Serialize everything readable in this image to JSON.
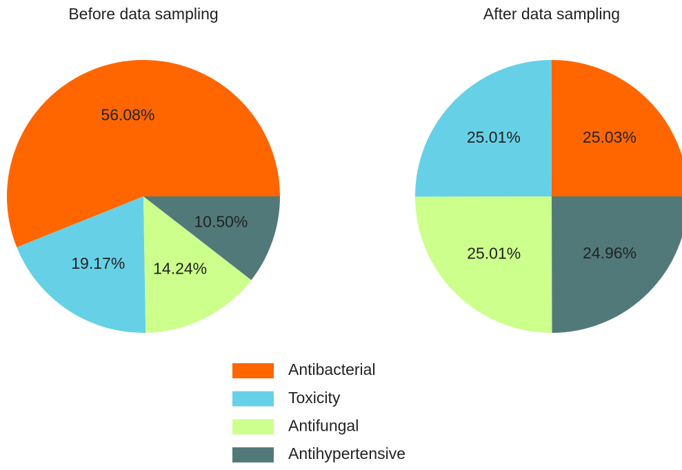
{
  "chart_data": [
    {
      "type": "pie",
      "title": "Before data sampling",
      "categories": [
        "Antibacterial",
        "Toxicity",
        "Antifungal",
        "Antihypertensive"
      ],
      "values": [
        56.08,
        19.17,
        14.24,
        10.5
      ],
      "value_labels": [
        "56.08%",
        "19.17%",
        "14.24%",
        "10.50%"
      ],
      "colors": [
        "#ff6600",
        "#66d1e6",
        "#ccff8c",
        "#52797a"
      ]
    },
    {
      "type": "pie",
      "title": "After data sampling",
      "categories": [
        "Antibacterial",
        "Toxicity",
        "Antifungal",
        "Antihypertensive"
      ],
      "values": [
        25.03,
        25.01,
        25.01,
        24.96
      ],
      "value_labels": [
        "25.03%",
        "25.01%",
        "25.01%",
        "24.96%"
      ],
      "colors": [
        "#ff6600",
        "#66d1e6",
        "#ccff8c",
        "#52797a"
      ]
    }
  ]
}
